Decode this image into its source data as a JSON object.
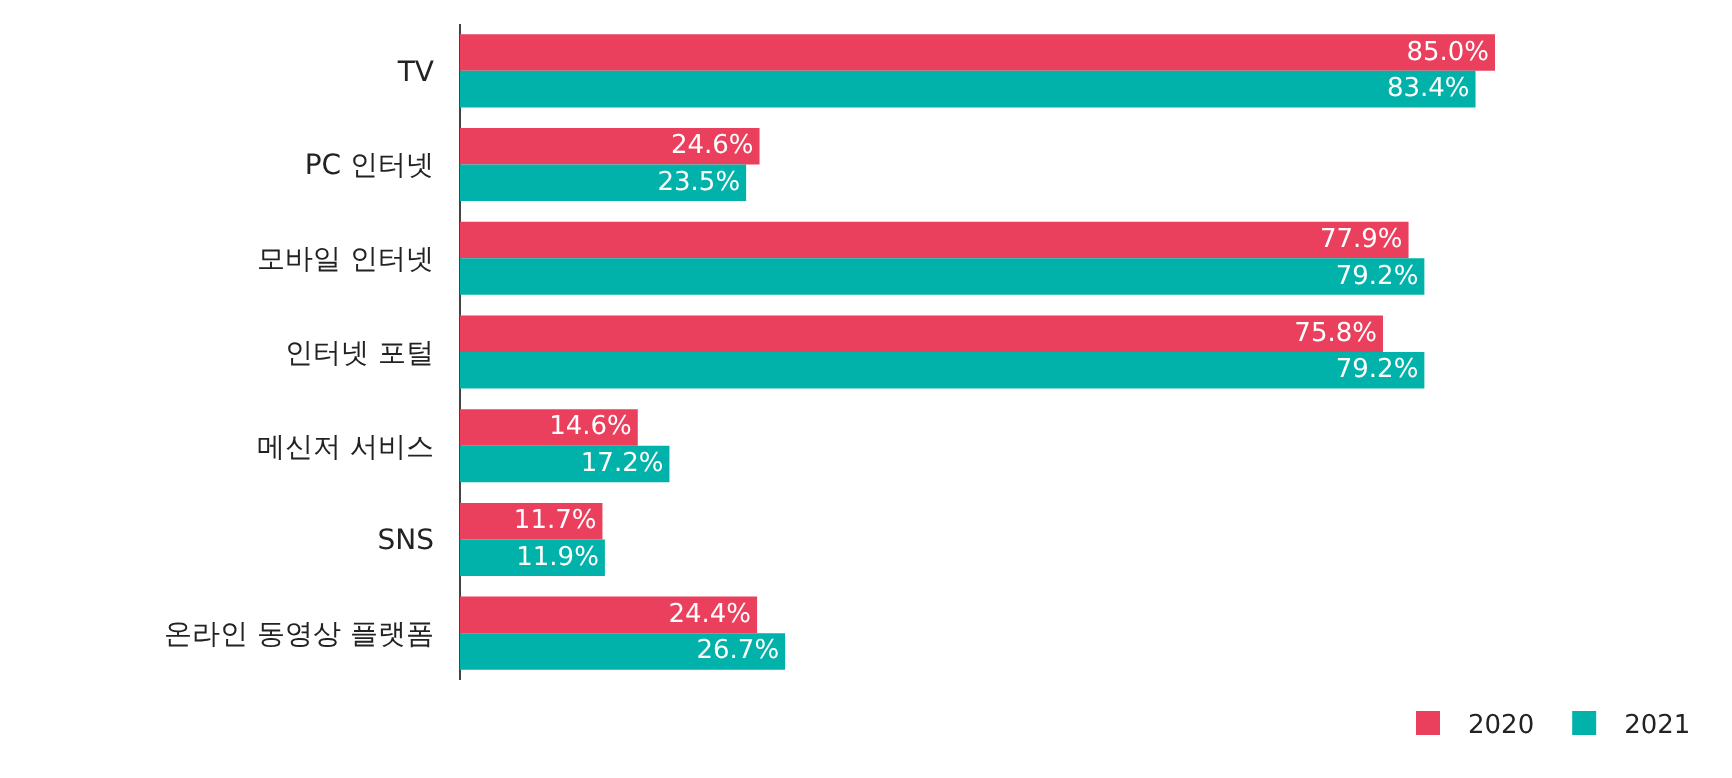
{
  "chart_data": {
    "type": "bar",
    "orientation": "horizontal",
    "categories": [
      "TV",
      "PC 인터넷",
      "모바일 인터넷",
      "인터넷 포털",
      "메신저 서비스",
      "SNS",
      "온라인 동영상 플랫폼"
    ],
    "series": [
      {
        "name": "2020",
        "color": "#ea3f5d",
        "values": [
          85.0,
          24.6,
          77.9,
          75.8,
          14.6,
          11.7,
          24.4
        ],
        "value_labels": [
          "85.0%",
          "24.6%",
          "77.9%",
          "75.8%",
          "14.6%",
          "11.7%",
          "24.4%"
        ]
      },
      {
        "name": "2021",
        "color": "#00b2a9",
        "values": [
          83.4,
          23.5,
          79.2,
          79.2,
          17.2,
          11.9,
          26.7
        ],
        "value_labels": [
          "83.4%",
          "23.5%",
          "79.2%",
          "79.2%",
          "17.2%",
          "11.9%",
          "26.7%"
        ]
      }
    ],
    "legend": "bottom right",
    "grid": false
  }
}
